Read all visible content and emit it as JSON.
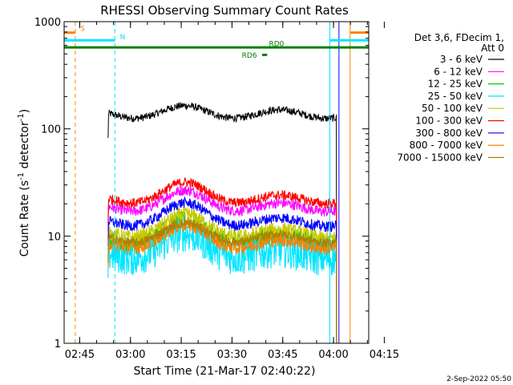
{
  "chart_data": {
    "type": "line",
    "title": "RHESSI Observing Summary Count Rates",
    "xlabel": "Start Time (21-Mar-17 02:40:22)",
    "ylabel_main": "Count Rate (s",
    "ylabel_sup1": "-1",
    "ylabel_mid": " detector",
    "ylabel_sup2": "-1",
    "ylabel_end": ")",
    "yscale": "log",
    "ylim": [
      1,
      1000
    ],
    "xlim_minutes": [
      0,
      90
    ],
    "x_ticks": [
      {
        "m": 4.6,
        "label": "02:45"
      },
      {
        "m": 19.6,
        "label": "03:00"
      },
      {
        "m": 34.6,
        "label": "03:15"
      },
      {
        "m": 49.6,
        "label": "03:30"
      },
      {
        "m": 64.6,
        "label": "03:45"
      },
      {
        "m": 79.6,
        "label": "04:00"
      },
      {
        "m": 94.6,
        "label": "04:15"
      }
    ],
    "y_ticks": [
      {
        "v": 1,
        "label": "1"
      },
      {
        "v": 10,
        "label": "10"
      },
      {
        "v": 100,
        "label": "100"
      },
      {
        "v": 1000,
        "label": "1000"
      }
    ],
    "data_start_min": 13.0,
    "data_end_min": 80.5,
    "hump_peak_min": 36,
    "series": [
      {
        "name": "3 - 6 keV",
        "color": "#000000",
        "base": 137,
        "hump": 0.04,
        "noise": 0.035,
        "end_value": 125
      },
      {
        "name": "6 - 12 keV",
        "color": "#ff00ff",
        "base": 18.5,
        "hump": 0.12,
        "noise": 0.05,
        "end_value": 17
      },
      {
        "name": "12 - 25 keV",
        "color": "#00d000",
        "base": 9.2,
        "hump": 0.14,
        "noise": 0.09,
        "end_value": 9
      },
      {
        "name": "25 - 50 keV",
        "color": "#00e5ff",
        "base": 6.8,
        "hump": 0.15,
        "noise": 0.17,
        "end_value": 7
      },
      {
        "name": "50 - 100 keV",
        "color": "#c8c800",
        "base": 10.5,
        "hump": 0.14,
        "noise": 0.07,
        "end_value": 10
      },
      {
        "name": "100 - 300 keV",
        "color": "#ff0000",
        "base": 22,
        "hump": 0.12,
        "noise": 0.045,
        "end_value": 21
      },
      {
        "name": "300 - 800 keV",
        "color": "#0000ff",
        "base": 13.5,
        "hump": 0.14,
        "noise": 0.05,
        "end_value": 13
      },
      {
        "name": "800 - 7000 keV",
        "color": "#ff8000",
        "base": 8.5,
        "hump": 0.14,
        "noise": 0.07,
        "end_value": 8
      },
      {
        "name": "7000 - 15000 keV",
        "color": "#b08000",
        "base": 9.5,
        "hump": 0.1,
        "noise": 0.04,
        "end_value": 9
      }
    ],
    "vertical_lines": [
      {
        "m": 0.0,
        "color": "#00e5ff",
        "dashed": false
      },
      {
        "m": 3.3,
        "color": "#ff8000",
        "dashed": true
      },
      {
        "m": 15.0,
        "color": "#00e5ff",
        "dashed": true
      },
      {
        "m": 78.5,
        "color": "#00e5ff",
        "dashed": false
      },
      {
        "m": 81.2,
        "color": "#0000ff",
        "dashed": false
      },
      {
        "m": 84.5,
        "color": "#ff8000",
        "dashed": false
      },
      {
        "m": 90.0,
        "color": "#00e5ff",
        "dashed": true
      }
    ],
    "flag_bars": [
      {
        "name": "S",
        "color": "#ff8000",
        "level": 790,
        "segments": [
          [
            0,
            3.3
          ],
          [
            84.5,
            90
          ]
        ]
      },
      {
        "name": "N",
        "color": "#00e5ff",
        "level": 670,
        "segments": [
          [
            0,
            15.0
          ],
          [
            78.5,
            90
          ]
        ]
      },
      {
        "name": "RD0",
        "color": "#008000",
        "level": 575,
        "segments": [
          [
            0,
            90
          ]
        ]
      },
      {
        "name": "RD6",
        "color": "#008000",
        "level": 490,
        "segments": [
          [
            58.5,
            60
          ]
        ]
      }
    ],
    "flag_labels": {
      "S": {
        "m": 4.8,
        "v": 820,
        "color": "#ff8000"
      },
      "N": {
        "m": 16.5,
        "v": 685,
        "color": "#00e5ff"
      },
      "RD0": {
        "m": 60.5,
        "v": 590,
        "color": "#008000"
      },
      "RD6": {
        "m": 52.5,
        "v": 462,
        "color": "#008000"
      }
    },
    "legend_header": [
      "Det 3,6, FDecim 1,",
      "Att 0"
    ],
    "timestamp": "2-Sep-2022 05:50"
  }
}
